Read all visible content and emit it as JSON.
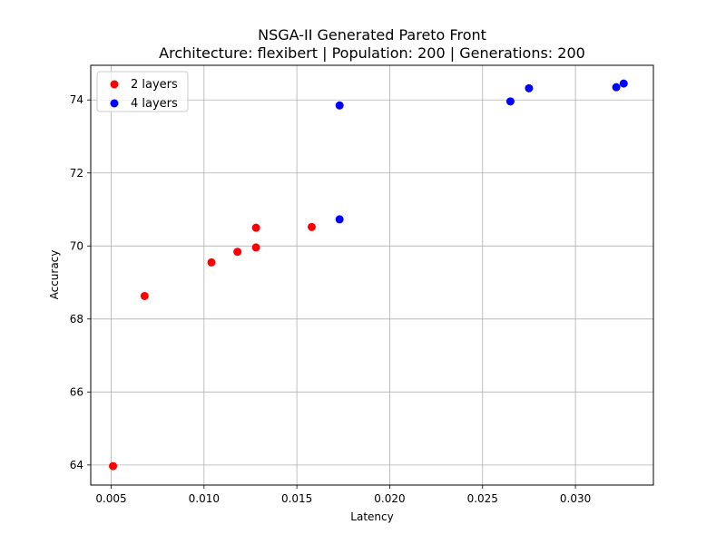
{
  "chart_data": {
    "type": "scatter",
    "title": "NSGA-II Generated Pareto Front",
    "subtitle": "Architecture: flexibert | Population: 200 | Generations: 200",
    "xlabel": "Latency",
    "ylabel": "Accuracy",
    "xlim": [
      0.0039,
      0.0342
    ],
    "ylim": [
      63.45,
      74.95
    ],
    "xticks": [
      0.005,
      0.01,
      0.015,
      0.02,
      0.025,
      0.03
    ],
    "xtick_labels": [
      "0.005",
      "0.010",
      "0.015",
      "0.020",
      "0.025",
      "0.030"
    ],
    "yticks": [
      64,
      66,
      68,
      70,
      72,
      74
    ],
    "ytick_labels": [
      "64",
      "66",
      "68",
      "70",
      "72",
      "74"
    ],
    "grid": true,
    "legend_position": "top-left",
    "series": [
      {
        "name": "2 layers",
        "color": "#ff0000",
        "points": [
          {
            "x": 0.0051,
            "y": 63.97
          },
          {
            "x": 0.0068,
            "y": 68.63
          },
          {
            "x": 0.0104,
            "y": 69.55
          },
          {
            "x": 0.0118,
            "y": 69.84
          },
          {
            "x": 0.0128,
            "y": 69.96
          },
          {
            "x": 0.0128,
            "y": 70.5
          },
          {
            "x": 0.0158,
            "y": 70.52
          }
        ]
      },
      {
        "name": "4 layers",
        "color": "#0000ff",
        "points": [
          {
            "x": 0.0173,
            "y": 70.73
          },
          {
            "x": 0.0173,
            "y": 73.85
          },
          {
            "x": 0.0265,
            "y": 73.96
          },
          {
            "x": 0.0275,
            "y": 74.32
          },
          {
            "x": 0.0322,
            "y": 74.35
          },
          {
            "x": 0.0326,
            "y": 74.45
          }
        ]
      }
    ]
  }
}
